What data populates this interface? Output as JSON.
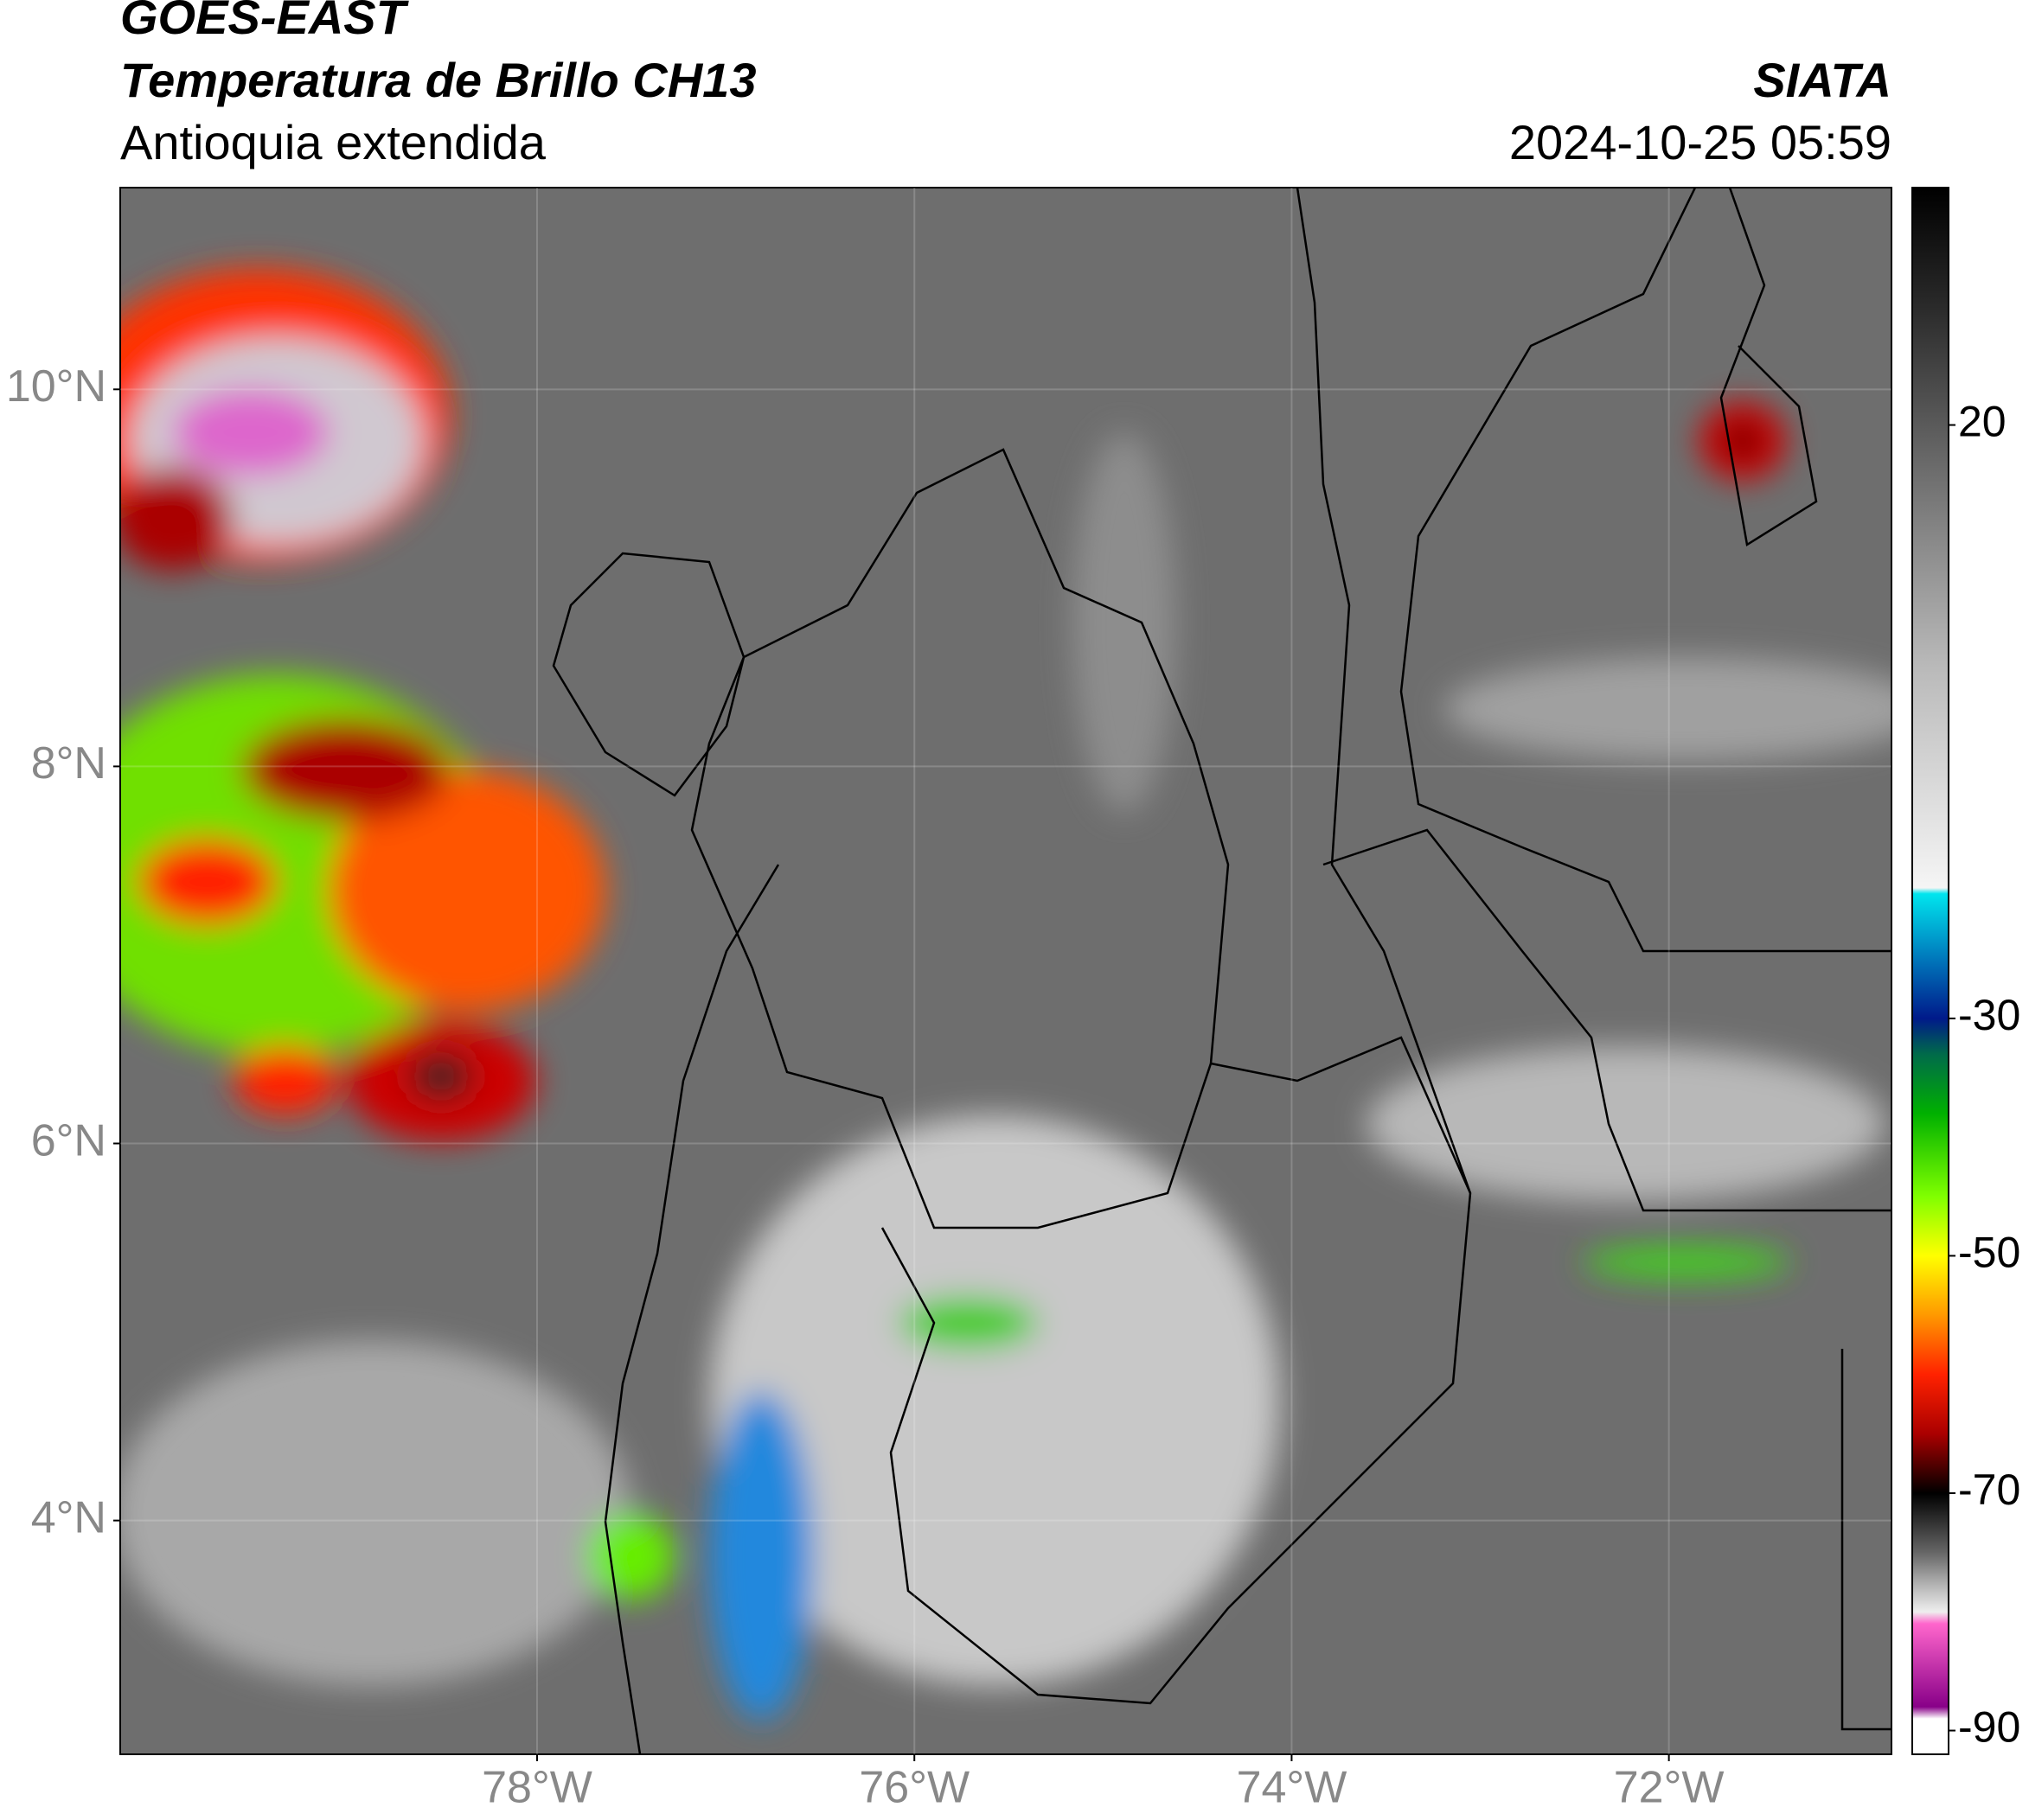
{
  "header": {
    "satellite": "GOES-EAST",
    "product": "Temperatura de Brillo CH13",
    "region": "Antioquia extendida",
    "source": "SIATA",
    "datetime": "2024-10-25 05:59"
  },
  "map": {
    "lonlim": [
      -80.21,
      -70.82
    ],
    "latlim": [
      2.76,
      11.07
    ],
    "grid": true,
    "xticks": [
      {
        "value": -78,
        "label": "78°W"
      },
      {
        "value": -76,
        "label": "76°W"
      },
      {
        "value": -74,
        "label": "74°W"
      },
      {
        "value": -72,
        "label": "72°W"
      }
    ],
    "yticks": [
      {
        "value": 10,
        "label": "10°N"
      },
      {
        "value": 8,
        "label": "8°N"
      },
      {
        "value": 6,
        "label": "6°N"
      },
      {
        "value": 4,
        "label": "4°N"
      }
    ]
  },
  "colorbar": {
    "clim": [
      -92,
      40
    ],
    "ticks": [
      20,
      -30,
      -50,
      -70,
      -90
    ],
    "colormap": [
      {
        "value": 40,
        "color": "#000000"
      },
      {
        "value": 30,
        "color": "#2a2a2a"
      },
      {
        "value": 20,
        "color": "#5a5a5a"
      },
      {
        "value": 10,
        "color": "#8a8a8a"
      },
      {
        "value": 0,
        "color": "#b8b8b8"
      },
      {
        "value": -19,
        "color": "#f5f5f5"
      },
      {
        "value": -19.5,
        "color": "#00e5ee"
      },
      {
        "value": -25,
        "color": "#0077bb"
      },
      {
        "value": -30,
        "color": "#001a8a"
      },
      {
        "value": -33,
        "color": "#006a4a"
      },
      {
        "value": -38,
        "color": "#00b000"
      },
      {
        "value": -45,
        "color": "#80ff00"
      },
      {
        "value": -50,
        "color": "#ffff00"
      },
      {
        "value": -55,
        "color": "#ff9900"
      },
      {
        "value": -60,
        "color": "#ff2200"
      },
      {
        "value": -65,
        "color": "#aa0000"
      },
      {
        "value": -68,
        "color": "#440000"
      },
      {
        "value": -70,
        "color": "#000000"
      },
      {
        "value": -75,
        "color": "#666666"
      },
      {
        "value": -78,
        "color": "#bbbbbb"
      },
      {
        "value": -80,
        "color": "#eeeeee"
      },
      {
        "value": -81,
        "color": "#ff66cc"
      },
      {
        "value": -88,
        "color": "#880088"
      },
      {
        "value": -89,
        "color": "#ffffff"
      },
      {
        "value": -92,
        "color": "#ffffff"
      }
    ]
  }
}
